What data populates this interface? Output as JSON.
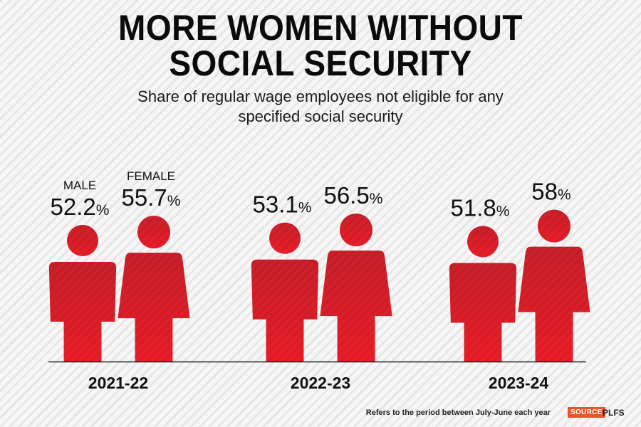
{
  "title_line1": "MORE WOMEN WITHOUT",
  "title_line2": "SOCIAL SECURITY",
  "subtitle_line1": "Share of regular wage employees not eligible for any",
  "subtitle_line2": "specified social security",
  "footnote": "Refers to the period between July-June each year",
  "source_label": "SOURCE",
  "source_value": "PLFS",
  "colors": {
    "figure_top": "#c8202a",
    "figure_bottom": "#ea1d28",
    "accent": "#e8542b"
  },
  "chart_data": {
    "type": "bar",
    "title": "MORE WOMEN WITHOUT SOCIAL SECURITY",
    "subtitle": "Share of regular wage employees not eligible for any specified social security",
    "unit": "%",
    "categories": [
      "2021-22",
      "2022-23",
      "2023-24"
    ],
    "series": [
      {
        "name": "MALE",
        "values": [
          52.2,
          53.1,
          51.8
        ],
        "labels": [
          "52.2",
          "53.1",
          "51.8"
        ]
      },
      {
        "name": "FEMALE",
        "values": [
          55.7,
          56.5,
          58
        ],
        "labels": [
          "55.7",
          "56.5",
          "58"
        ]
      }
    ],
    "ylim": [
      0,
      60
    ]
  }
}
